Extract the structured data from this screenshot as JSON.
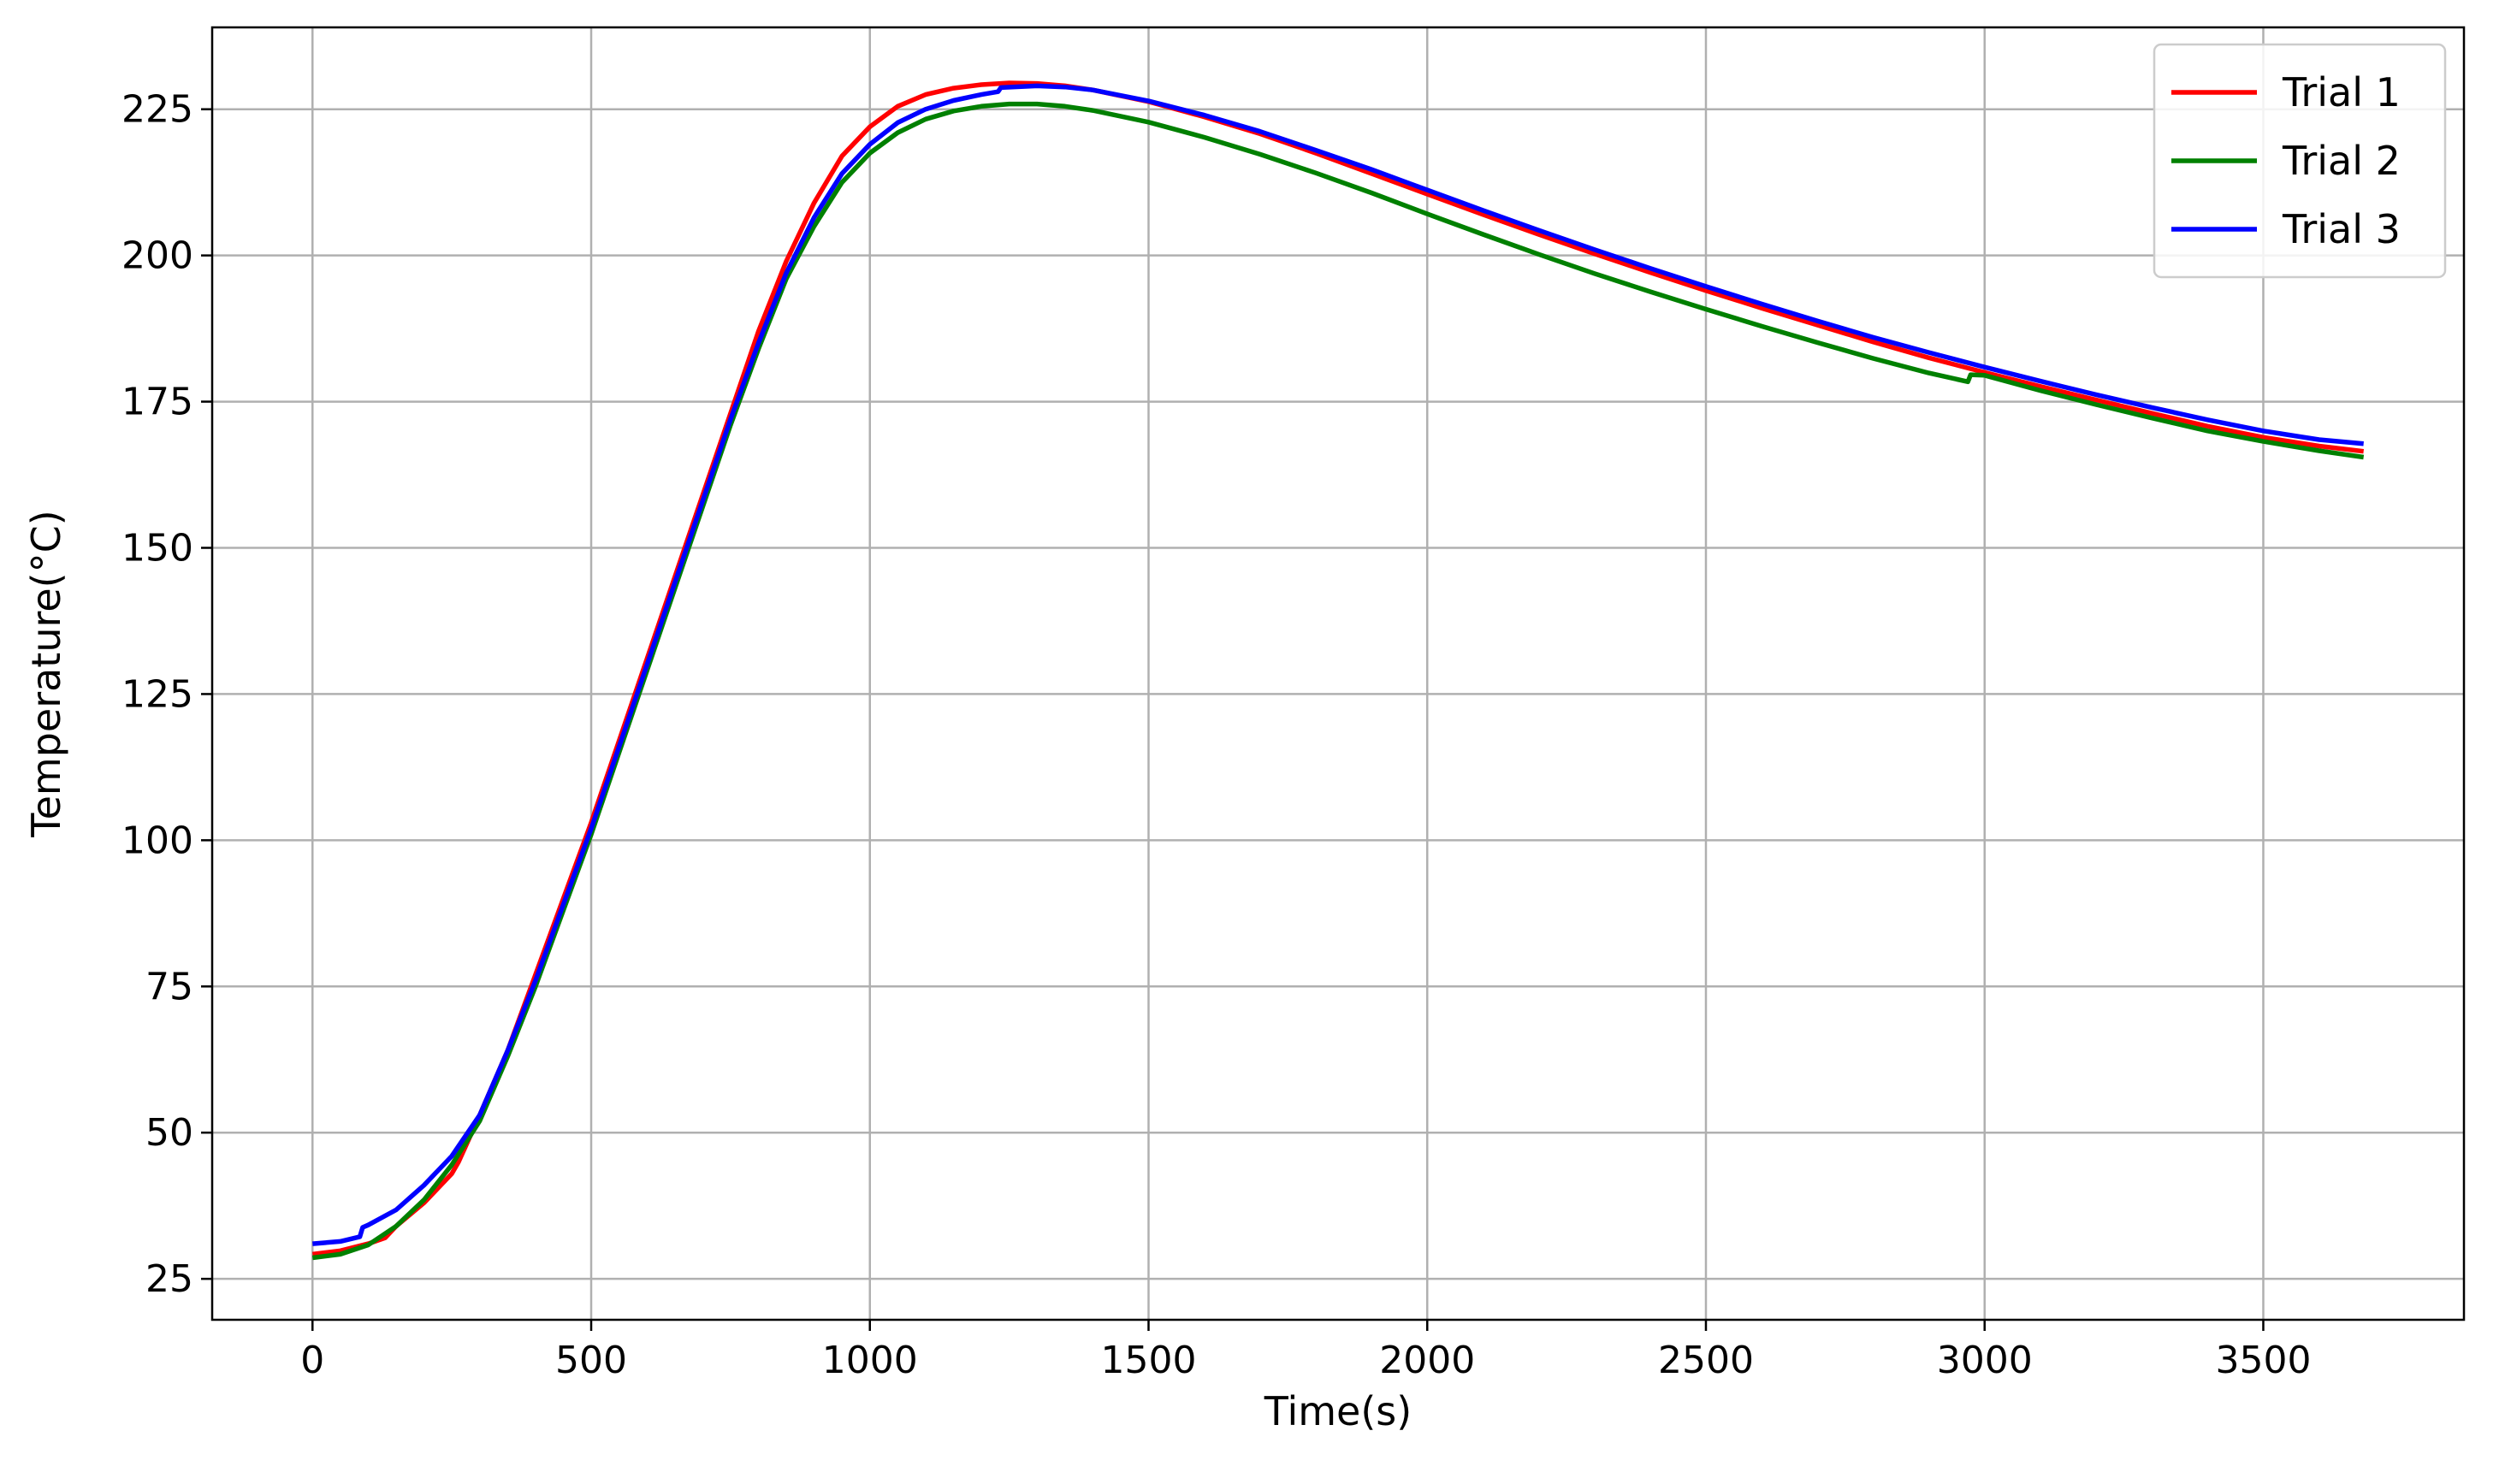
{
  "chart_data": {
    "type": "line",
    "title": "",
    "xlabel": "Time(s)",
    "ylabel": "Temperature(°C)",
    "xlim": [
      -180,
      3860
    ],
    "ylim": [
      18,
      239
    ],
    "x_ticks": [
      0,
      500,
      1000,
      1500,
      2000,
      2500,
      3000,
      3500
    ],
    "y_ticks": [
      25,
      50,
      75,
      100,
      125,
      150,
      175,
      200,
      225
    ],
    "grid": true,
    "legend_position": "top-right",
    "series": [
      {
        "name": "Trial 1",
        "color": "#ff0000",
        "points": [
          [
            0,
            29.2
          ],
          [
            50,
            29.8
          ],
          [
            100,
            31.0
          ],
          [
            130,
            32.0
          ],
          [
            150,
            34.0
          ],
          [
            200,
            38.0
          ],
          [
            250,
            43.0
          ],
          [
            262,
            45.0
          ],
          [
            300,
            53
          ],
          [
            350,
            64
          ],
          [
            400,
            77
          ],
          [
            450,
            90
          ],
          [
            500,
            103
          ],
          [
            550,
            117
          ],
          [
            600,
            131
          ],
          [
            650,
            145
          ],
          [
            700,
            159
          ],
          [
            750,
            173
          ],
          [
            800,
            187
          ],
          [
            850,
            199
          ],
          [
            900,
            209
          ],
          [
            950,
            217
          ],
          [
            1000,
            222
          ],
          [
            1050,
            225.5
          ],
          [
            1100,
            227.5
          ],
          [
            1150,
            228.6
          ],
          [
            1200,
            229.2
          ],
          [
            1250,
            229.5
          ],
          [
            1300,
            229.4
          ],
          [
            1350,
            229.0
          ],
          [
            1400,
            228.3
          ],
          [
            1500,
            226.3
          ],
          [
            1600,
            223.7
          ],
          [
            1700,
            220.8
          ],
          [
            1800,
            217.5
          ],
          [
            1900,
            214.0
          ],
          [
            2000,
            210.5
          ],
          [
            2100,
            207.0
          ],
          [
            2200,
            203.6
          ],
          [
            2300,
            200.3
          ],
          [
            2400,
            197.1
          ],
          [
            2500,
            194.0
          ],
          [
            2600,
            191.0
          ],
          [
            2700,
            188.1
          ],
          [
            2800,
            185.2
          ],
          [
            2900,
            182.5
          ],
          [
            3000,
            180.0
          ],
          [
            3100,
            177.6
          ],
          [
            3200,
            175.3
          ],
          [
            3300,
            173.0
          ],
          [
            3400,
            170.8
          ],
          [
            3500,
            168.9
          ],
          [
            3600,
            167.4
          ],
          [
            3680,
            166.5
          ]
        ]
      },
      {
        "name": "Trial 2",
        "color": "#008000",
        "points": [
          [
            0,
            28.6
          ],
          [
            50,
            29.2
          ],
          [
            100,
            30.8
          ],
          [
            150,
            34.0
          ],
          [
            200,
            38.5
          ],
          [
            250,
            44.5
          ],
          [
            300,
            52
          ],
          [
            350,
            63
          ],
          [
            400,
            75
          ],
          [
            450,
            88
          ],
          [
            500,
            101
          ],
          [
            550,
            115
          ],
          [
            600,
            129
          ],
          [
            650,
            143
          ],
          [
            700,
            157
          ],
          [
            750,
            171
          ],
          [
            800,
            184
          ],
          [
            850,
            196
          ],
          [
            900,
            205
          ],
          [
            950,
            212.5
          ],
          [
            1000,
            217.5
          ],
          [
            1050,
            221
          ],
          [
            1100,
            223.3
          ],
          [
            1150,
            224.7
          ],
          [
            1200,
            225.5
          ],
          [
            1250,
            225.9
          ],
          [
            1300,
            225.9
          ],
          [
            1350,
            225.5
          ],
          [
            1400,
            224.8
          ],
          [
            1500,
            222.8
          ],
          [
            1600,
            220.2
          ],
          [
            1700,
            217.3
          ],
          [
            1800,
            214.1
          ],
          [
            1900,
            210.7
          ],
          [
            2000,
            207.1
          ],
          [
            2100,
            203.6
          ],
          [
            2200,
            200.2
          ],
          [
            2300,
            196.9
          ],
          [
            2400,
            193.8
          ],
          [
            2500,
            190.8
          ],
          [
            2600,
            187.9
          ],
          [
            2700,
            185.1
          ],
          [
            2800,
            182.4
          ],
          [
            2900,
            179.9
          ],
          [
            2970,
            178.4
          ],
          [
            2975,
            179.6
          ],
          [
            3000,
            179.5
          ],
          [
            3100,
            176.9
          ],
          [
            3200,
            174.5
          ],
          [
            3300,
            172.2
          ],
          [
            3400,
            170.0
          ],
          [
            3500,
            168.2
          ],
          [
            3600,
            166.6
          ],
          [
            3680,
            165.5
          ]
        ]
      },
      {
        "name": "Trial 3",
        "color": "#0000ff",
        "points": [
          [
            0,
            31.0
          ],
          [
            50,
            31.4
          ],
          [
            85,
            32.2
          ],
          [
            90,
            33.8
          ],
          [
            100,
            34.2
          ],
          [
            150,
            36.8
          ],
          [
            200,
            41.0
          ],
          [
            250,
            46.0
          ],
          [
            300,
            53
          ],
          [
            350,
            64
          ],
          [
            400,
            76
          ],
          [
            450,
            89
          ],
          [
            500,
            102
          ],
          [
            550,
            116
          ],
          [
            600,
            130
          ],
          [
            650,
            144
          ],
          [
            700,
            158
          ],
          [
            750,
            172
          ],
          [
            800,
            185
          ],
          [
            850,
            197
          ],
          [
            900,
            206.5
          ],
          [
            950,
            214
          ],
          [
            1000,
            219
          ],
          [
            1050,
            222.7
          ],
          [
            1100,
            225.0
          ],
          [
            1150,
            226.5
          ],
          [
            1200,
            227.5
          ],
          [
            1230,
            228.0
          ],
          [
            1235,
            228.7
          ],
          [
            1300,
            229.0
          ],
          [
            1350,
            228.8
          ],
          [
            1400,
            228.3
          ],
          [
            1500,
            226.4
          ],
          [
            1600,
            224.0
          ],
          [
            1700,
            221.2
          ],
          [
            1800,
            218.0
          ],
          [
            1900,
            214.7
          ],
          [
            2000,
            211.2
          ],
          [
            2100,
            207.7
          ],
          [
            2200,
            204.3
          ],
          [
            2300,
            201.0
          ],
          [
            2400,
            197.8
          ],
          [
            2500,
            194.7
          ],
          [
            2600,
            191.7
          ],
          [
            2700,
            188.8
          ],
          [
            2800,
            186.0
          ],
          [
            2900,
            183.4
          ],
          [
            3000,
            180.9
          ],
          [
            3100,
            178.5
          ],
          [
            3200,
            176.2
          ],
          [
            3300,
            174.0
          ],
          [
            3400,
            171.9
          ],
          [
            3500,
            170.0
          ],
          [
            3600,
            168.5
          ],
          [
            3680,
            167.8
          ]
        ]
      }
    ]
  }
}
